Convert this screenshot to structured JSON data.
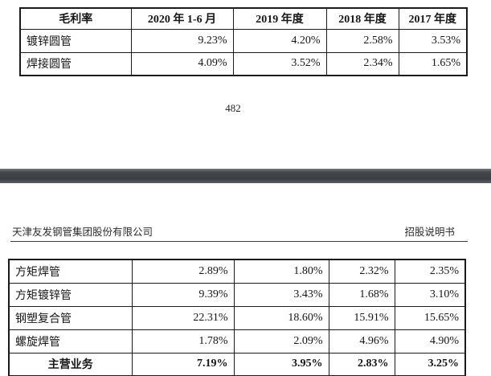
{
  "page1": {
    "page_number": "482",
    "table": {
      "headers": [
        "毛利率",
        "2020 年 1-6 月",
        "2019 年度",
        "2018 年度",
        "2017 年度"
      ],
      "rows": [
        [
          "镀锌圆管",
          "9.23%",
          "4.20%",
          "2.58%",
          "3.53%"
        ],
        [
          "焊接圆管",
          "4.09%",
          "3.52%",
          "2.34%",
          "1.65%"
        ]
      ]
    }
  },
  "page2": {
    "company_name": "天津友发钢管集团股份有限公司",
    "doc_type": "招股说明书",
    "table": {
      "rows": [
        [
          "方矩焊管",
          "2.89%",
          "1.80%",
          "2.32%",
          "2.35%"
        ],
        [
          "方矩镀锌管",
          "9.39%",
          "3.43%",
          "1.68%",
          "3.10%"
        ],
        [
          "钢塑复合管",
          "22.31%",
          "18.60%",
          "15.91%",
          "15.65%"
        ],
        [
          "螺旋焊管",
          "1.78%",
          "2.09%",
          "4.96%",
          "4.90%"
        ]
      ],
      "total_row": [
        "主营业务",
        "7.19%",
        "3.95%",
        "2.83%",
        "3.25%"
      ]
    }
  },
  "colors": {
    "separator_band": "#3b3f43",
    "table_border": "#1b1b1b",
    "text": "#161616"
  }
}
